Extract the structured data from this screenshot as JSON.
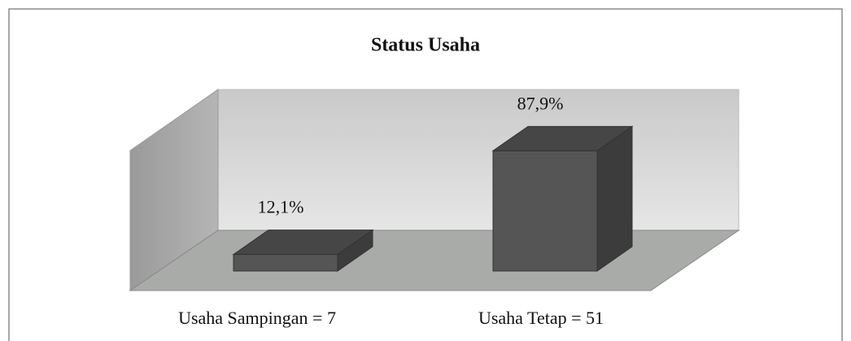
{
  "chart_data": {
    "type": "bar3d",
    "title": "Status Usaha",
    "categories": [
      "Usaha Sampingan = 7",
      "Usaha Tetap = 51"
    ],
    "values": [
      12.1,
      87.9
    ],
    "value_labels": [
      "12,1%",
      "87,9%"
    ],
    "color": "#555555",
    "ylim": [
      0,
      100
    ]
  }
}
